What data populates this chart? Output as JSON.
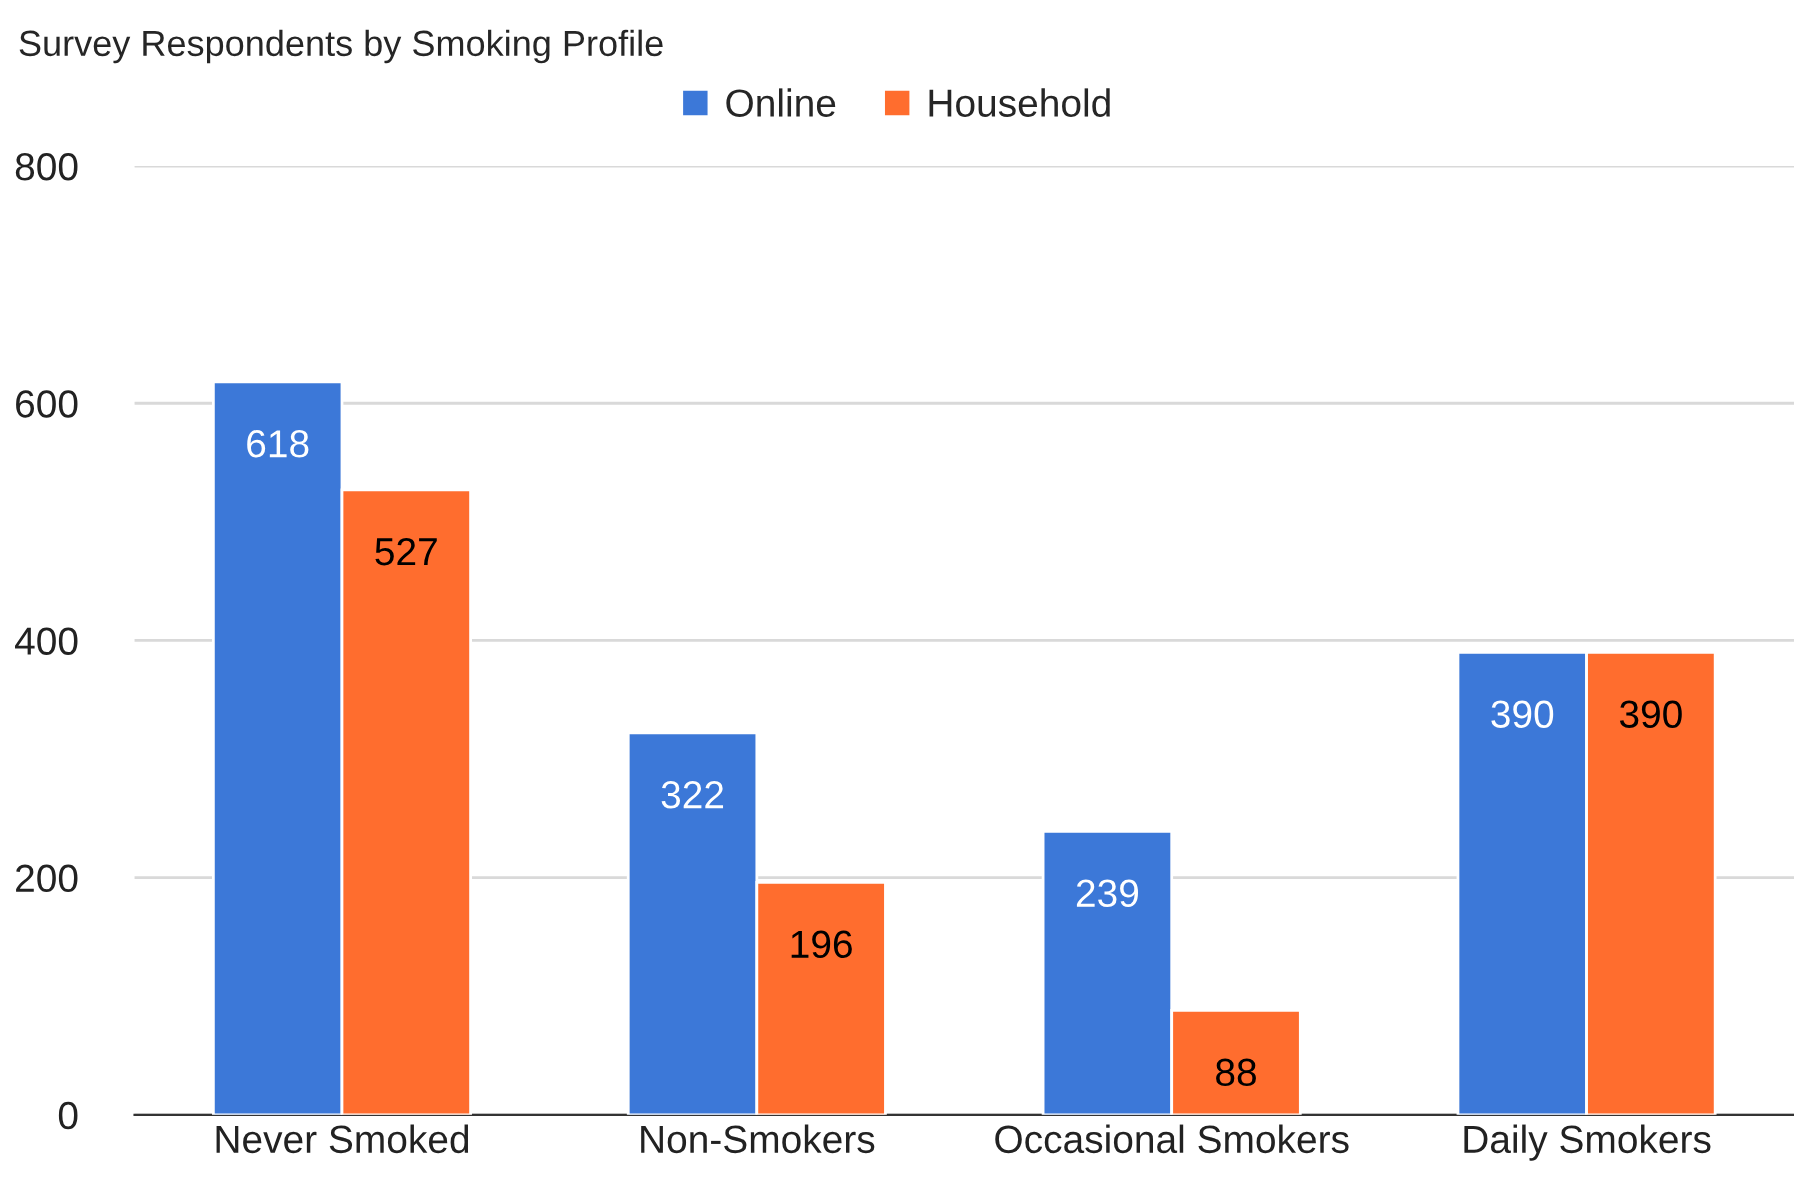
{
  "chart_data": {
    "type": "bar",
    "title": "Survey Respondents by Smoking Profile",
    "categories": [
      "Never Smoked",
      "Non-Smokers",
      "Occasional Smokers",
      "Daily Smokers"
    ],
    "series": [
      {
        "name": "Online",
        "color": "#3c78d8",
        "values": [
          618,
          322,
          239,
          390
        ]
      },
      {
        "name": "Household",
        "color": "#ff6d2e",
        "values": [
          527,
          196,
          88,
          390
        ]
      }
    ],
    "ylim": [
      0,
      800
    ],
    "yticks": [
      0,
      200,
      400,
      600,
      800
    ],
    "grid": "y",
    "legend": "top",
    "data_labels": true
  }
}
